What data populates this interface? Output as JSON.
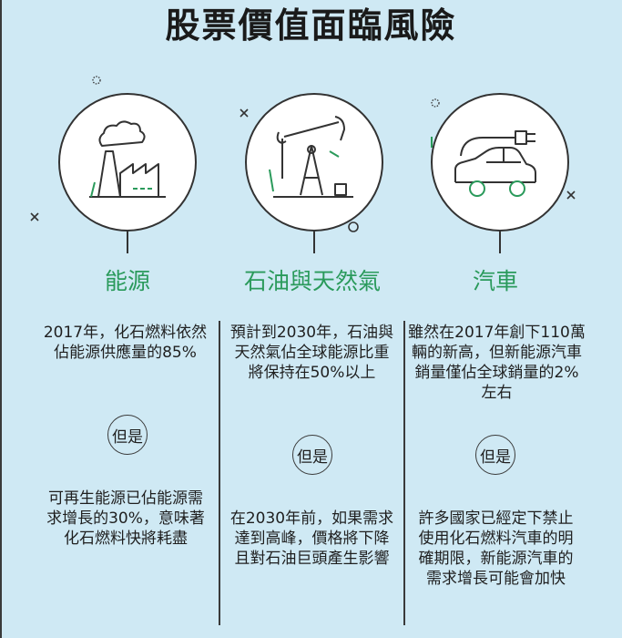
{
  "title": "股票價值面臨風險",
  "columns": [
    {
      "category": "能源",
      "icon": "factory-icon",
      "fact": "2017年，化石燃料依然佔能源供應量的85%",
      "but_label": "但是",
      "consequence": "可再生能源已佔能源需求增長的30%，意味著化石燃料快將耗盡"
    },
    {
      "category": "石油與天然氣",
      "icon": "oil-pump-icon",
      "fact": "預計到2030年，石油與天然氣佔全球能源比重將保持在50%以上",
      "but_label": "但是",
      "consequence": "在2030年前，如果需求達到高峰，價格將下降且對石油巨頭產生影響"
    },
    {
      "category": "汽車",
      "icon": "electric-car-icon",
      "fact": "雖然在2017年創下110萬輛的新高，但新能源汽車銷量僅佔全球銷量的2%左右",
      "but_label": "但是",
      "consequence": "許多國家已經定下禁止使用化石燃料汽車的明確期限，新能源汽車的需求增長可能會加快"
    }
  ],
  "colors": {
    "background": "#cfe9f4",
    "accent": "#2a9a5b",
    "line": "#3a3a3a"
  }
}
